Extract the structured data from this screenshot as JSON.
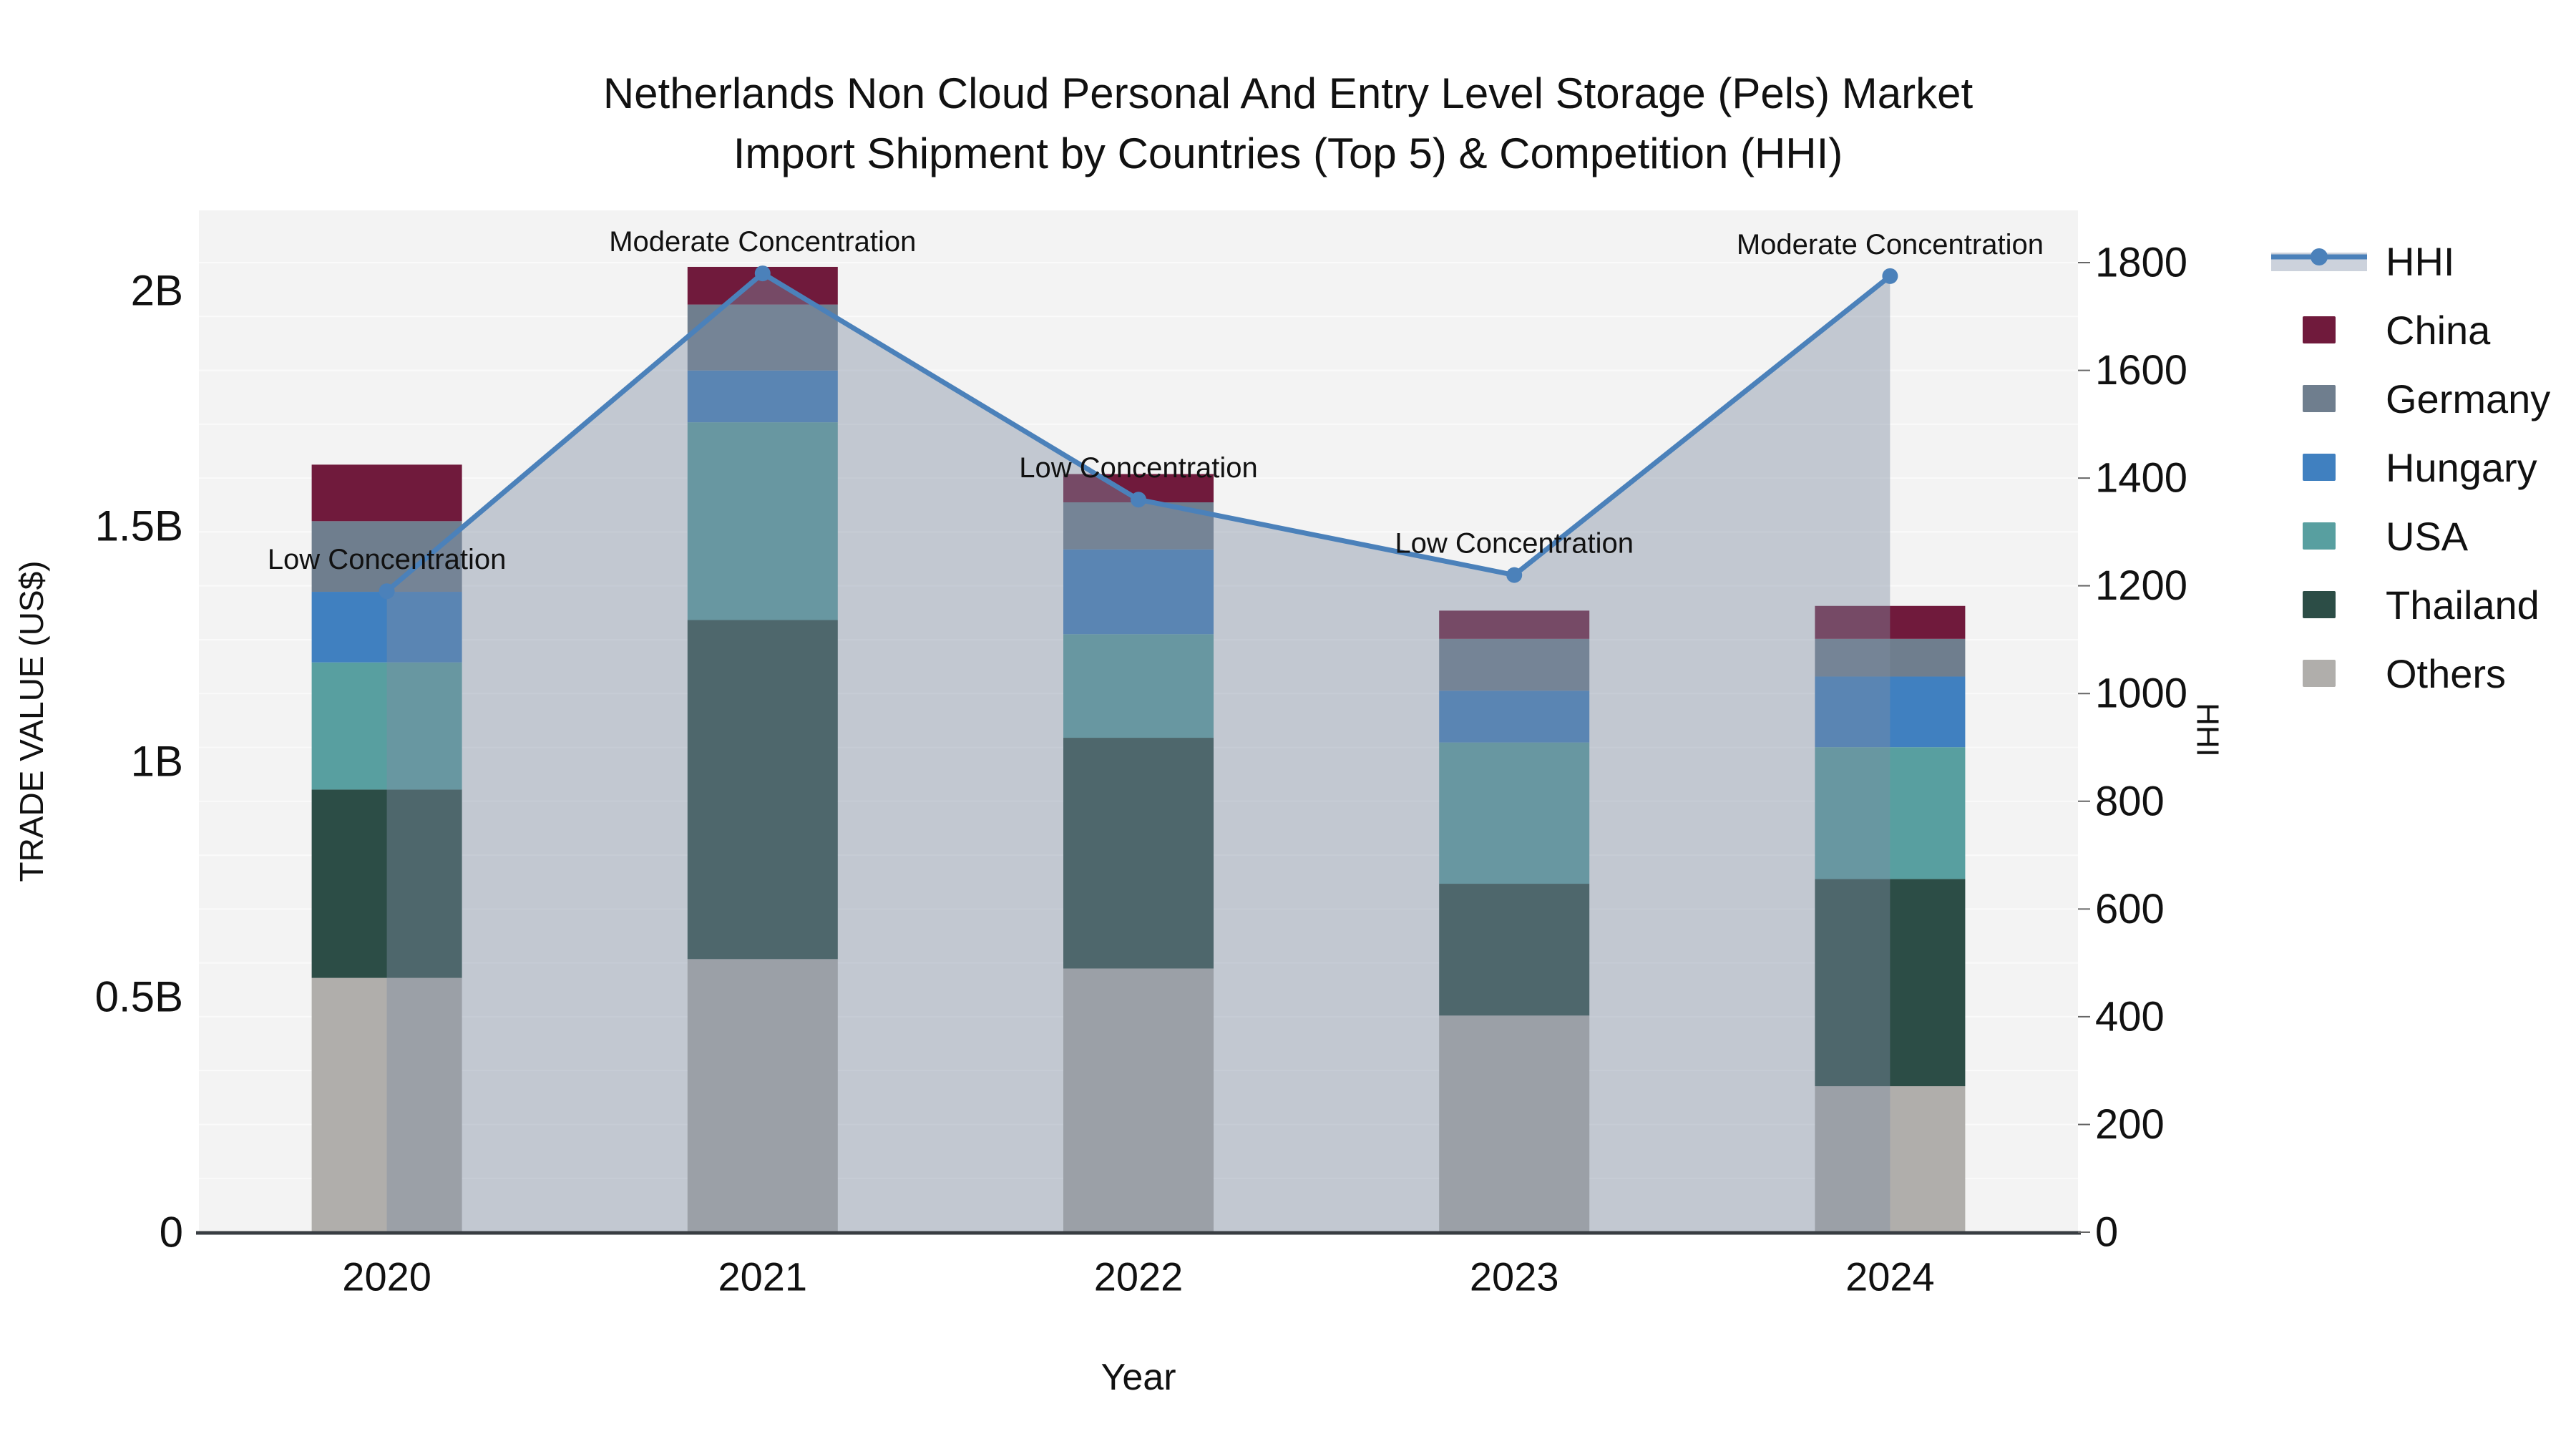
{
  "title": {
    "line1": "Netherlands Non Cloud Personal And Entry Level Storage (Pels) Market",
    "line2": "Import Shipment by Countries (Top 5) & Competition (HHI)"
  },
  "colors": {
    "china": "#701A3C",
    "germany": "#6F7E8E",
    "hungary": "#4080C0",
    "usa": "#589FA0",
    "thailand": "#2C4D46",
    "others": "#B0AEAB",
    "hhi_line": "#4B81BA",
    "hhi_fill": "rgba(127,140,163,0.42)",
    "hhi_fill_swatch": "#CCD2DC",
    "plot_bg": "#F3F3F3",
    "gridline": "#FAFAFA",
    "axis_line": "#383D42",
    "text": "#111111"
  },
  "chart_data": {
    "type": "stacked-bar+line",
    "categories": [
      "2020",
      "2021",
      "2022",
      "2023",
      "2024"
    ],
    "bar_value_unit": "billions US$",
    "series": [
      {
        "name": "Others",
        "color_key": "others",
        "values": [
          0.54,
          0.58,
          0.56,
          0.46,
          0.31
        ]
      },
      {
        "name": "Thailand",
        "color_key": "thailand",
        "values": [
          0.4,
          0.72,
          0.49,
          0.28,
          0.44
        ]
      },
      {
        "name": "USA",
        "color_key": "usa",
        "values": [
          0.27,
          0.42,
          0.22,
          0.3,
          0.28
        ]
      },
      {
        "name": "Hungary",
        "color_key": "hungary",
        "values": [
          0.15,
          0.11,
          0.18,
          0.11,
          0.15
        ]
      },
      {
        "name": "Germany",
        "color_key": "germany",
        "values": [
          0.15,
          0.14,
          0.1,
          0.11,
          0.08
        ]
      },
      {
        "name": "China",
        "color_key": "china",
        "values": [
          0.12,
          0.08,
          0.06,
          0.06,
          0.07
        ]
      }
    ],
    "line_series": {
      "name": "HHI",
      "values": [
        1190,
        1780,
        1360,
        1220,
        1775
      ],
      "annotations": [
        "Low Concentration",
        "Moderate Concentration",
        "Low Concentration",
        "Low Concentration",
        "Moderate Concentration"
      ],
      "area_fill": true
    },
    "y_left": {
      "title": "TRADE VALUE (US$)",
      "ticks": [
        {
          "value": 0,
          "label": "0"
        },
        {
          "value": 0.5,
          "label": "0.5B"
        },
        {
          "value": 1,
          "label": "1B"
        },
        {
          "value": 1.5,
          "label": "1.5B"
        },
        {
          "value": 2,
          "label": "2B"
        }
      ],
      "range": [
        0,
        2.17
      ]
    },
    "y_right": {
      "title": "HHI",
      "ticks": [
        0,
        200,
        400,
        600,
        800,
        1000,
        1200,
        1400,
        1600,
        1800
      ],
      "range": [
        0,
        1897
      ],
      "minor_grid_step": 100
    },
    "x": {
      "title": "Year"
    },
    "legend_position": "right"
  },
  "legend": {
    "items": [
      {
        "label": "HHI",
        "swatch": "line"
      },
      {
        "label": "China",
        "swatch": "china"
      },
      {
        "label": "Germany",
        "swatch": "germany"
      },
      {
        "label": "Hungary",
        "swatch": "hungary"
      },
      {
        "label": "USA",
        "swatch": "usa"
      },
      {
        "label": "Thailand",
        "swatch": "thailand"
      },
      {
        "label": "Others",
        "swatch": "others"
      }
    ]
  }
}
